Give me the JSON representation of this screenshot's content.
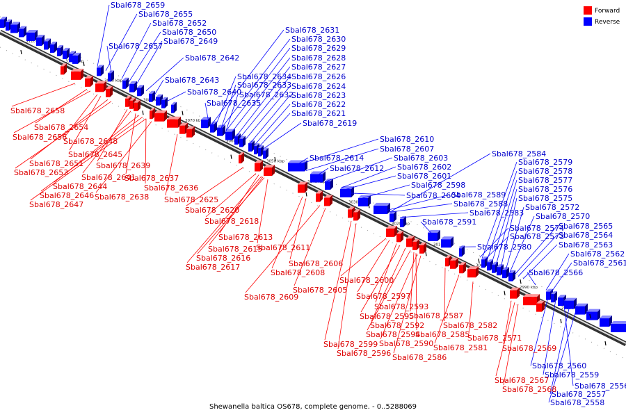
{
  "caption": "Shewanella baltica OS678, complete genome. - 0..5288069",
  "legend": [
    {
      "label": "Forward",
      "color": "#ff0000"
    },
    {
      "label": "Reverse",
      "color": "#0000ff"
    }
  ],
  "ticks": [
    "3110 kbp",
    "3100 kbp",
    "3090 kbp",
    "3080 kbp",
    "3070 kbp",
    "3060 kbp",
    "3050 kbp",
    "3040 kbp",
    "3030 kbp",
    "3020 kbp",
    "3010 kbp",
    "3000 kbp",
    "2990 kbp",
    "2980 kbp"
  ],
  "reverse_labels": [
    "Sbal678_2659",
    "Sbal678_2655",
    "Sbal678_2652",
    "Sbal678_2650",
    "Sbal678_2649",
    "Sbal678_2657",
    "Sbal678_2642",
    "Sbal678_2643",
    "Sbal678_2640",
    "Sbal678_2635",
    "Sbal678_2631",
    "Sbal678_2630",
    "Sbal678_2629",
    "Sbal678_2628",
    "Sbal678_2627",
    "Sbal678_2634",
    "Sbal678_2626",
    "Sbal678_2633",
    "Sbal678_2624",
    "Sbal678_2632",
    "Sbal678_2623",
    "Sbal678_2622",
    "Sbal678_2621",
    "Sbal678_2619",
    "Sbal678_2610",
    "Sbal678_2614",
    "Sbal678_2607",
    "Sbal678_2603",
    "Sbal678_2612",
    "Sbal678_2602",
    "Sbal678_2601",
    "Sbal678_2598",
    "Sbal678_2604",
    "Sbal678_2584",
    "Sbal678_2579",
    "Sbal678_2578",
    "Sbal678_2577",
    "Sbal678_2576",
    "Sbal678_2589",
    "Sbal678_2575",
    "Sbal678_2588",
    "Sbal678_2572",
    "Sbal678_2583",
    "Sbal678_2570",
    "Sbal678_2591",
    "Sbal678_2565",
    "Sbal678_2574",
    "Sbal678_2564",
    "Sbal678_2573",
    "Sbal678_2563",
    "Sbal678_2580",
    "Sbal678_2562",
    "Sbal678_2561",
    "Sbal678_2566",
    "Sbal678_2560",
    "Sbal678_2559",
    "Sbal678_2556",
    "Sbal678_2557",
    "Sbal678_2558"
  ],
  "forward_labels": [
    "Sbal678_2658",
    "Sbal678_2654",
    "Sbal678_2656",
    "Sbal678_2648",
    "Sbal678_2645",
    "Sbal678_2651",
    "Sbal678_2639",
    "Sbal678_2653",
    "Sbal678_2641",
    "Sbal678_2637",
    "Sbal678_2644",
    "Sbal678_2636",
    "Sbal678_2646",
    "Sbal678_2638",
    "Sbal678_2625",
    "Sbal678_2647",
    "Sbal678_2620",
    "Sbal678_2618",
    "Sbal678_2613",
    "Sbal678_2615",
    "Sbal678_2611",
    "Sbal678_2616",
    "Sbal678_2617",
    "Sbal678_2606",
    "Sbal678_2608",
    "Sbal678_2600",
    "Sbal678_2605",
    "Sbal678_2609",
    "Sbal678_2597",
    "Sbal678_2593",
    "Sbal678_2587",
    "Sbal678_2595",
    "Sbal678_2592",
    "Sbal678_2582",
    "Sbal678_2594",
    "Sbal678_2585",
    "Sbal678_2590",
    "Sbal678_2571",
    "Sbal678_2599",
    "Sbal678_2581",
    "Sbal678_2596",
    "Sbal678_2569",
    "Sbal678_2586",
    "Sbal678_2567",
    "Sbal678_2568"
  ]
}
